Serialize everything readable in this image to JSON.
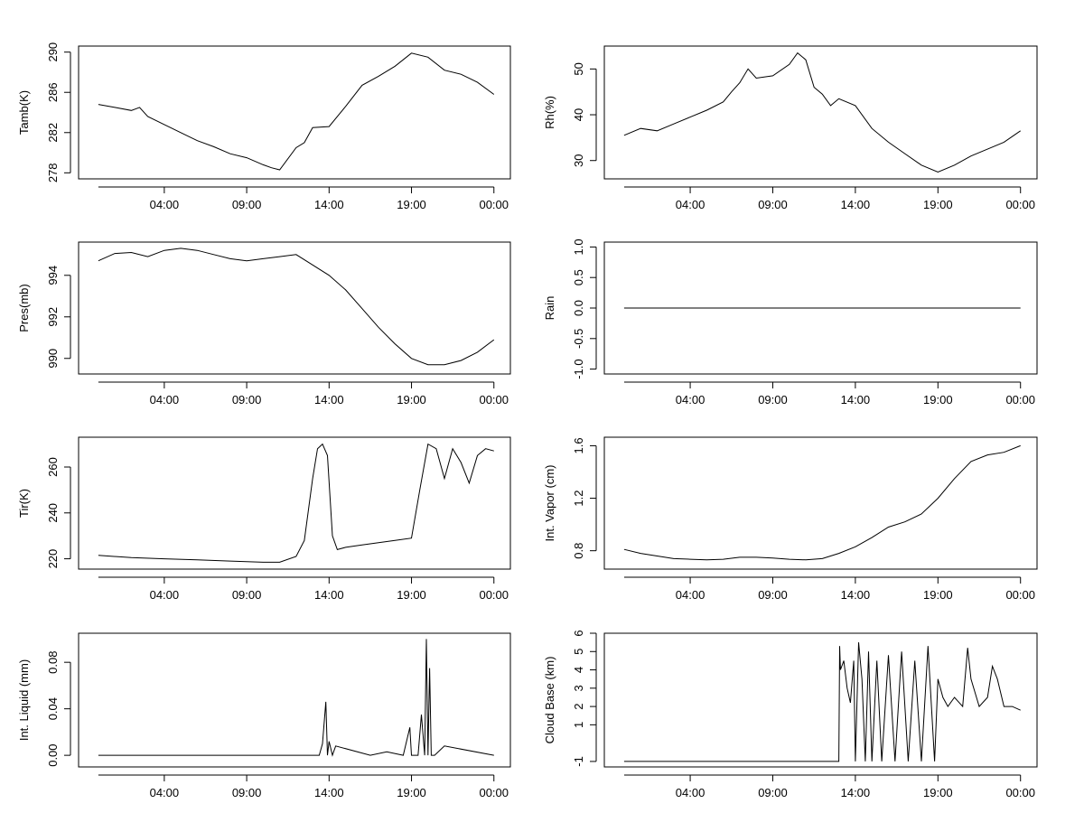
{
  "chart_data": [
    {
      "type": "line",
      "ylabel": "Tamb(K)",
      "x_ticks": [
        "04:00",
        "09:00",
        "14:00",
        "19:00",
        "00:00"
      ],
      "y_ticks": [
        "278",
        "282",
        "286",
        "290"
      ],
      "xlim": [
        -1.2,
        25.0
      ],
      "ylim": [
        277.4,
        290.6
      ],
      "x": [
        0,
        1,
        2,
        2.5,
        3,
        4,
        5,
        6,
        7,
        8,
        9,
        10,
        10.5,
        11,
        12,
        12.5,
        13,
        14,
        15,
        16,
        17,
        18,
        19,
        20,
        21,
        22,
        23,
        24
      ],
      "series": [
        {
          "values": [
            284.8,
            284.5,
            284.2,
            284.5,
            283.6,
            282.8,
            282.0,
            281.2,
            280.6,
            279.9,
            279.5,
            278.8,
            278.5,
            278.3,
            280.5,
            281.0,
            282.5,
            282.6,
            284.6,
            286.7,
            287.6,
            288.6,
            289.9,
            289.5,
            288.2,
            287.8,
            287.0,
            285.8
          ]
        }
      ]
    },
    {
      "type": "line",
      "ylabel": "Rh(%)",
      "x_ticks": [
        "04:00",
        "09:00",
        "14:00",
        "19:00",
        "00:00"
      ],
      "y_ticks": [
        "30",
        "40",
        "50"
      ],
      "xlim": [
        -1.2,
        25.0
      ],
      "ylim": [
        26,
        55
      ],
      "x": [
        0,
        1,
        2,
        3,
        4,
        5,
        6,
        6.5,
        7,
        7.5,
        8,
        9,
        10,
        10.5,
        11,
        11.5,
        12,
        12.5,
        13,
        14,
        15,
        16,
        17,
        18,
        19,
        20,
        21,
        22,
        23,
        24
      ],
      "series": [
        {
          "values": [
            35.5,
            37.0,
            36.5,
            38.0,
            39.5,
            41.0,
            42.8,
            45.0,
            47.0,
            50.0,
            48.0,
            48.5,
            51.0,
            53.5,
            52.0,
            46.0,
            44.5,
            42.0,
            43.5,
            42.0,
            37.0,
            34.0,
            31.5,
            29.0,
            27.5,
            29.0,
            31.0,
            32.5,
            34.0,
            36.5
          ]
        }
      ]
    },
    {
      "type": "line",
      "ylabel": "Pres(mb)",
      "x_ticks": [
        "04:00",
        "09:00",
        "14:00",
        "19:00",
        "00:00"
      ],
      "y_ticks": [
        "990",
        "992",
        "994"
      ],
      "xlim": [
        -1.2,
        25.0
      ],
      "ylim": [
        989.25,
        995.6
      ],
      "x": [
        0,
        1,
        2,
        3,
        4,
        5,
        6,
        7,
        8,
        9,
        10,
        11,
        12,
        13,
        14,
        15,
        16,
        17,
        18,
        19,
        20,
        21,
        22,
        23,
        24
      ],
      "series": [
        {
          "values": [
            994.7,
            995.05,
            995.1,
            994.9,
            995.2,
            995.3,
            995.2,
            995.0,
            994.8,
            994.7,
            994.8,
            994.9,
            995.0,
            994.5,
            994.0,
            993.3,
            992.4,
            991.5,
            990.7,
            990.0,
            989.7,
            989.7,
            989.9,
            990.3,
            990.9
          ]
        }
      ]
    },
    {
      "type": "line",
      "ylabel": "Rain",
      "x_ticks": [
        "04:00",
        "09:00",
        "14:00",
        "19:00",
        "00:00"
      ],
      "y_ticks": [
        "-1.0",
        "-0.5",
        "0.0",
        "0.5",
        "1.0"
      ],
      "xlim": [
        -1.2,
        25.0
      ],
      "ylim": [
        -1.08,
        1.08
      ],
      "x": [
        0,
        24
      ],
      "series": [
        {
          "values": [
            0.0,
            0.0
          ]
        }
      ]
    },
    {
      "type": "line",
      "ylabel": "Tir(K)",
      "x_ticks": [
        "04:00",
        "09:00",
        "14:00",
        "19:00",
        "00:00"
      ],
      "y_ticks": [
        "220",
        "240",
        "260"
      ],
      "xlim": [
        -1.2,
        25.0
      ],
      "ylim": [
        215.5,
        273.0
      ],
      "x": [
        0,
        2,
        4,
        6,
        8,
        10,
        11,
        12,
        12.5,
        13,
        13.3,
        13.6,
        13.9,
        14.2,
        14.5,
        15,
        16,
        17,
        18,
        19,
        19.5,
        20,
        20.5,
        21,
        21.5,
        22,
        22.5,
        23,
        23.5,
        24
      ],
      "series": [
        {
          "values": [
            221.5,
            220.5,
            220.0,
            219.5,
            219.0,
            218.5,
            218.5,
            221.0,
            228.0,
            255.0,
            268.0,
            270.0,
            265.0,
            230.0,
            224.0,
            225.0,
            226.0,
            227.0,
            228.0,
            229.0,
            250.0,
            270.0,
            268.0,
            255.0,
            268.0,
            262.0,
            253.0,
            265.0,
            268.0,
            267.0
          ]
        }
      ]
    },
    {
      "type": "line",
      "ylabel": "Int. Vapor (cm)",
      "x_ticks": [
        "04:00",
        "09:00",
        "14:00",
        "19:00",
        "00:00"
      ],
      "y_ticks": [
        "0.8",
        "1.2",
        "1.6"
      ],
      "xlim": [
        -1.2,
        25.0
      ],
      "ylim": [
        0.66,
        1.665
      ],
      "x": [
        0,
        1,
        2,
        3,
        4,
        5,
        6,
        7,
        8,
        9,
        10,
        11,
        12,
        13,
        14,
        15,
        16,
        17,
        18,
        19,
        20,
        21,
        22,
        23,
        24
      ],
      "series": [
        {
          "values": [
            0.81,
            0.78,
            0.76,
            0.74,
            0.735,
            0.73,
            0.735,
            0.75,
            0.75,
            0.745,
            0.735,
            0.73,
            0.74,
            0.78,
            0.83,
            0.9,
            0.98,
            1.02,
            1.08,
            1.2,
            1.35,
            1.48,
            1.53,
            1.55,
            1.6
          ]
        }
      ]
    },
    {
      "type": "line",
      "ylabel": "Int. Liquid (mm)",
      "x_ticks": [
        "04:00",
        "09:00",
        "14:00",
        "19:00",
        "00:00"
      ],
      "y_ticks": [
        "0.00",
        "0.04",
        "0.08"
      ],
      "xlim": [
        -1.2,
        25.0
      ],
      "ylim": [
        -0.01,
        0.105
      ],
      "x": [
        0,
        13.4,
        13.6,
        13.8,
        13.9,
        14.0,
        14.2,
        14.4,
        16.5,
        17.5,
        18.5,
        18.9,
        19.0,
        19.2,
        19.4,
        19.6,
        19.8,
        19.9,
        20.0,
        20.1,
        20.2,
        20.4,
        21.0,
        24
      ],
      "series": [
        {
          "values": [
            0.0,
            0.0,
            0.01,
            0.046,
            0.0,
            0.012,
            0.0,
            0.008,
            0.0,
            0.003,
            0.0,
            0.024,
            0.0,
            0.0,
            0.0,
            0.035,
            0.0,
            0.1,
            0.0,
            0.075,
            0.0,
            0.0,
            0.008,
            0.0
          ]
        }
      ]
    },
    {
      "type": "line",
      "ylabel": "Cloud Base (km)",
      "x_ticks": [
        "04:00",
        "09:00",
        "14:00",
        "19:00",
        "00:00"
      ],
      "y_ticks": [
        "-1",
        "1",
        "2",
        "3",
        "4",
        "5",
        "6"
      ],
      "xlim": [
        -1.2,
        25.0
      ],
      "ylim": [
        -1.3,
        6.0
      ],
      "x": [
        0,
        13.0,
        13.05,
        13.1,
        13.3,
        13.5,
        13.7,
        13.9,
        14.0,
        14.2,
        14.4,
        14.6,
        14.8,
        15.0,
        15.3,
        15.6,
        16.0,
        16.4,
        16.8,
        17.2,
        17.6,
        18.0,
        18.4,
        18.8,
        19.0,
        19.3,
        19.6,
        20.0,
        20.5,
        20.8,
        21.0,
        21.5,
        22.0,
        22.3,
        22.6,
        23.0,
        23.5,
        24
      ],
      "series": [
        {
          "values": [
            -1,
            -1,
            5.3,
            4.0,
            4.5,
            3.0,
            2.2,
            4.5,
            -1,
            5.5,
            3.5,
            -1,
            5.0,
            -1,
            4.5,
            -1,
            4.8,
            -1,
            5.0,
            -1,
            4.5,
            -1,
            5.3,
            -1,
            3.5,
            2.5,
            2.0,
            2.5,
            2.0,
            5.2,
            3.5,
            2.0,
            2.5,
            4.2,
            3.5,
            2.0,
            2.0,
            1.8
          ]
        }
      ]
    }
  ]
}
